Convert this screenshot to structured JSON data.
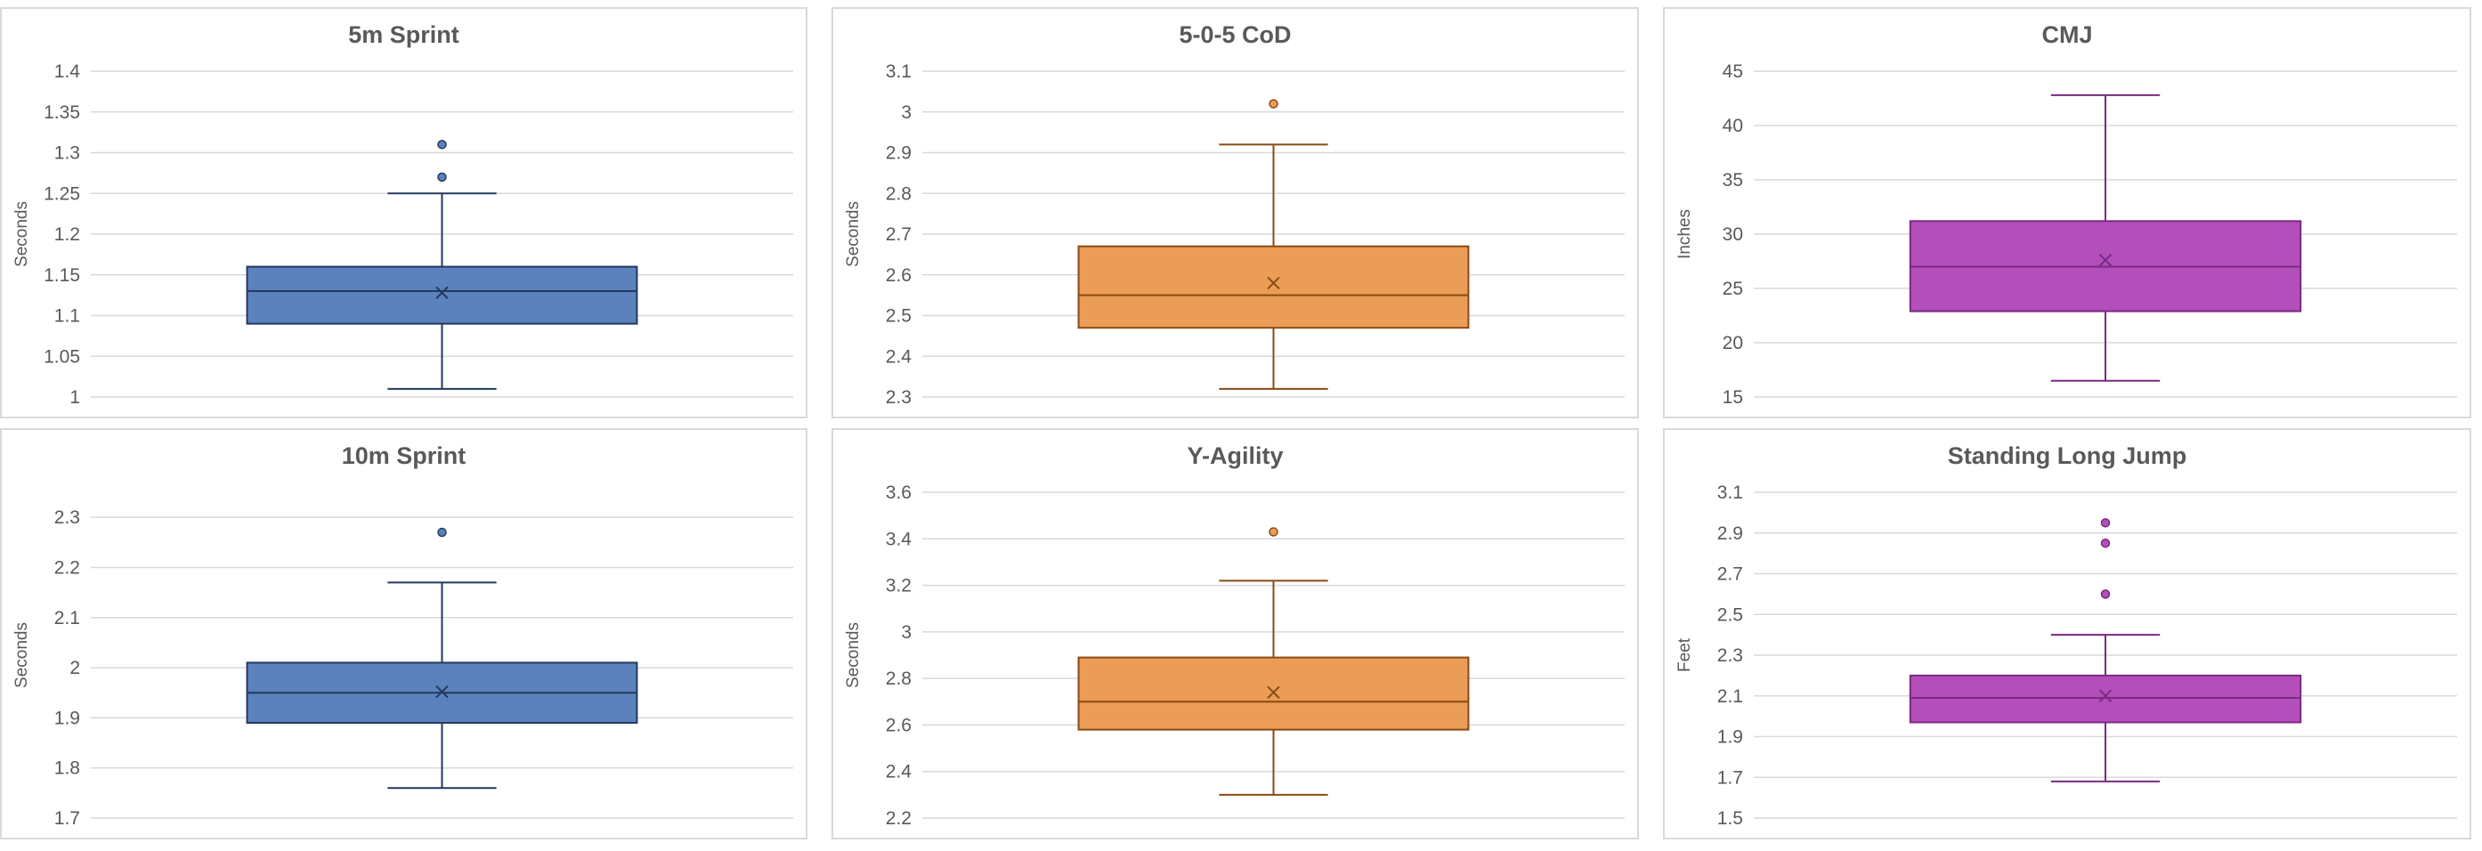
{
  "chart_data": [
    {
      "type": "box",
      "title": "5m Sprint",
      "ylabel": "Seconds",
      "ylim": [
        1,
        1.4
      ],
      "yticks": [
        1,
        1.05,
        1.1,
        1.15,
        1.2,
        1.25,
        1.3,
        1.35,
        1.4
      ],
      "ytick_labels": [
        "1",
        "1.05",
        "1.1",
        "1.15",
        "1.2",
        "1.25",
        "1.3",
        "1.35",
        "1.4"
      ],
      "box": {
        "min": 1.01,
        "q1": 1.09,
        "median": 1.13,
        "q3": 1.16,
        "max": 1.25,
        "mean": 1.128,
        "outliers": [
          1.27,
          1.31
        ]
      },
      "colors": {
        "fill": "#5b82bd",
        "stroke": "#23395d"
      }
    },
    {
      "type": "box",
      "title": "5-0-5 CoD",
      "ylabel": "Seconds",
      "ylim": [
        2.3,
        3.1
      ],
      "yticks": [
        2.3,
        2.4,
        2.5,
        2.6,
        2.7,
        2.8,
        2.9,
        3.0,
        3.1
      ],
      "ytick_labels": [
        "2.3",
        "2.4",
        "2.5",
        "2.6",
        "2.7",
        "2.8",
        "2.9",
        "3",
        "3.1"
      ],
      "box": {
        "min": 2.32,
        "q1": 2.47,
        "median": 2.55,
        "q3": 2.67,
        "max": 2.92,
        "mean": 2.58,
        "outliers": [
          3.02
        ]
      },
      "colors": {
        "fill": "#eb9c57",
        "stroke": "#8a4b12"
      }
    },
    {
      "type": "box",
      "title": "CMJ",
      "ylabel": "Inches",
      "ylim": [
        15,
        45
      ],
      "yticks": [
        15,
        20,
        25,
        30,
        35,
        40,
        45
      ],
      "ytick_labels": [
        "15",
        "20",
        "25",
        "30",
        "35",
        "40",
        "45"
      ],
      "box": {
        "min": 16.5,
        "q1": 22.9,
        "median": 27.0,
        "q3": 31.2,
        "max": 42.8,
        "mean": 27.6,
        "outliers": []
      },
      "colors": {
        "fill": "#b34fba",
        "stroke": "#7a2a82"
      }
    },
    {
      "type": "box",
      "title": "10m Sprint",
      "ylabel": "Seconds",
      "ylim": [
        1.7,
        2.35
      ],
      "yticks": [
        1.7,
        1.8,
        1.9,
        2.0,
        2.1,
        2.2,
        2.3
      ],
      "ytick_labels": [
        "1.7",
        "1.8",
        "1.9",
        "2",
        "2.1",
        "2.2",
        "2.3"
      ],
      "box": {
        "min": 1.76,
        "q1": 1.89,
        "median": 1.95,
        "q3": 2.01,
        "max": 2.17,
        "mean": 1.952,
        "outliers": [
          2.27
        ]
      },
      "colors": {
        "fill": "#5b82bd",
        "stroke": "#23395d"
      }
    },
    {
      "type": "box",
      "title": "Y-Agility",
      "ylabel": "Seconds",
      "ylim": [
        2.2,
        3.6
      ],
      "yticks": [
        2.2,
        2.4,
        2.6,
        2.8,
        3.0,
        3.2,
        3.4,
        3.6
      ],
      "ytick_labels": [
        "2.2",
        "2.4",
        "2.6",
        "2.8",
        "3",
        "3.2",
        "3.4",
        "3.6"
      ],
      "box": {
        "min": 2.3,
        "q1": 2.58,
        "median": 2.7,
        "q3": 2.89,
        "max": 3.22,
        "mean": 2.74,
        "outliers": [
          3.43
        ]
      },
      "colors": {
        "fill": "#eb9c57",
        "stroke": "#8a4b12"
      }
    },
    {
      "type": "box",
      "title": "Standing Long Jump",
      "ylabel": "Feet",
      "ylim": [
        1.5,
        3.1
      ],
      "yticks": [
        1.5,
        1.7,
        1.9,
        2.1,
        2.3,
        2.5,
        2.7,
        2.9,
        3.1
      ],
      "ytick_labels": [
        "1.5",
        "1.7",
        "1.9",
        "2.1",
        "2.3",
        "2.5",
        "2.7",
        "2.9",
        "3.1"
      ],
      "box": {
        "min": 1.68,
        "q1": 1.97,
        "median": 2.09,
        "q3": 2.2,
        "max": 2.4,
        "mean": 2.1,
        "outliers": [
          2.6,
          2.85,
          2.95
        ]
      },
      "colors": {
        "fill": "#b34fba",
        "stroke": "#7a2a82"
      }
    }
  ]
}
